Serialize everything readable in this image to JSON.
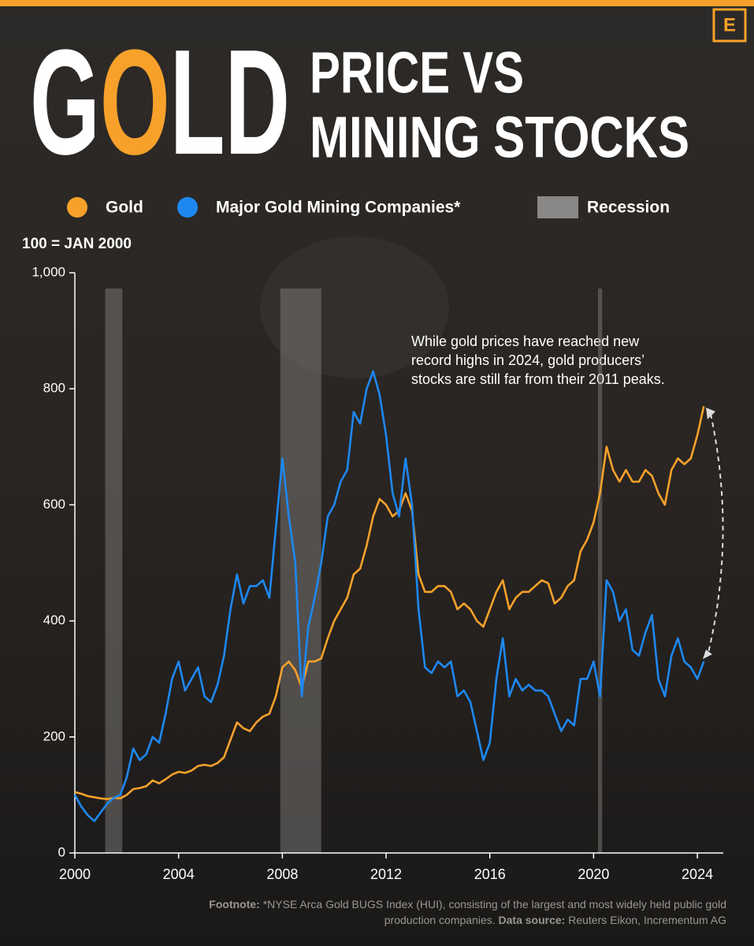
{
  "chart_data": {
    "type": "line",
    "brand": "E",
    "title": "GOLD",
    "title_lines": [
      "PRICE VS",
      "MINING STOCKS"
    ],
    "y_label": "100 = JAN 2000",
    "annotation": [
      "While gold prices have reached new",
      "record highs in 2024, gold producers’",
      "stocks are still far from their 2011 peaks."
    ],
    "footnote": {
      "label": "Footnote:",
      "text": "*NYSE Arca Gold BUGS Index (HUI), consisting of the largest and most widely held public gold production companies.",
      "source_label": "Data source:",
      "source": "Reuters Eikon, Incrementum AG"
    },
    "recession_name": "Recession",
    "recession_color": "#8a8886",
    "recessions": [
      [
        2001.17,
        2001.83
      ],
      [
        2007.92,
        2009.5
      ],
      [
        2020.17,
        2020.33
      ]
    ],
    "xlim": [
      2000,
      2025
    ],
    "xticks": [
      2000,
      2004,
      2008,
      2012,
      2016,
      2020,
      2024
    ],
    "ylim": [
      0,
      1000
    ],
    "yticks": [
      0,
      200,
      400,
      600,
      800,
      {
        "value": 1000,
        "label": "1,000"
      }
    ],
    "x": [
      2000,
      2000.25,
      2000.5,
      2000.75,
      2001,
      2001.25,
      2001.5,
      2001.75,
      2002,
      2002.25,
      2002.5,
      2002.75,
      2003,
      2003.25,
      2003.5,
      2003.75,
      2004,
      2004.25,
      2004.5,
      2004.75,
      2005,
      2005.25,
      2005.5,
      2005.75,
      2006,
      2006.25,
      2006.5,
      2006.75,
      2007,
      2007.25,
      2007.5,
      2007.75,
      2008,
      2008.25,
      2008.5,
      2008.75,
      2009,
      2009.25,
      2009.5,
      2009.75,
      2010,
      2010.25,
      2010.5,
      2010.75,
      2011,
      2011.25,
      2011.5,
      2011.75,
      2012,
      2012.25,
      2012.5,
      2012.75,
      2013,
      2013.25,
      2013.5,
      2013.75,
      2014,
      2014.25,
      2014.5,
      2014.75,
      2015,
      2015.25,
      2015.5,
      2015.75,
      2016,
      2016.25,
      2016.5,
      2016.75,
      2017,
      2017.25,
      2017.5,
      2017.75,
      2018,
      2018.25,
      2018.5,
      2018.75,
      2019,
      2019.25,
      2019.5,
      2019.75,
      2020,
      2020.25,
      2020.5,
      2020.75,
      2021,
      2021.25,
      2021.5,
      2021.75,
      2022,
      2022.25,
      2022.5,
      2022.75,
      2023,
      2023.25,
      2023.5,
      2023.75,
      2024,
      2024.25
    ],
    "series": [
      {
        "name": "Gold",
        "color": "#f7a12b",
        "values": [
          105,
          102,
          98,
          96,
          94,
          93,
          95,
          94,
          100,
          110,
          112,
          115,
          125,
          120,
          127,
          135,
          140,
          138,
          142,
          150,
          152,
          150,
          155,
          165,
          195,
          225,
          215,
          210,
          225,
          235,
          240,
          270,
          320,
          330,
          315,
          285,
          330,
          330,
          335,
          370,
          400,
          420,
          440,
          480,
          490,
          530,
          580,
          610,
          600,
          580,
          590,
          620,
          590,
          480,
          450,
          450,
          460,
          460,
          450,
          420,
          430,
          420,
          400,
          390,
          420,
          450,
          470,
          420,
          440,
          450,
          450,
          460,
          470,
          465,
          430,
          440,
          460,
          470,
          520,
          540,
          570,
          620,
          700,
          660,
          640,
          660,
          640,
          640,
          660,
          650,
          620,
          600,
          660,
          680,
          670,
          680,
          720,
          770
        ]
      },
      {
        "name": "Major Gold Mining Companies*",
        "color": "#1e88f0",
        "values": [
          100,
          80,
          65,
          55,
          70,
          85,
          95,
          100,
          130,
          180,
          160,
          170,
          200,
          190,
          240,
          300,
          330,
          280,
          300,
          320,
          270,
          260,
          290,
          340,
          420,
          480,
          430,
          460,
          460,
          470,
          440,
          560,
          680,
          580,
          500,
          270,
          390,
          440,
          500,
          580,
          600,
          640,
          660,
          760,
          740,
          800,
          830,
          790,
          720,
          620,
          580,
          680,
          600,
          420,
          320,
          310,
          330,
          320,
          330,
          270,
          280,
          260,
          210,
          160,
          190,
          300,
          370,
          270,
          300,
          280,
          290,
          280,
          280,
          270,
          240,
          210,
          230,
          220,
          300,
          300,
          330,
          270,
          470,
          450,
          400,
          420,
          350,
          340,
          380,
          410,
          300,
          270,
          340,
          370,
          330,
          320,
          300,
          330
        ]
      }
    ]
  }
}
